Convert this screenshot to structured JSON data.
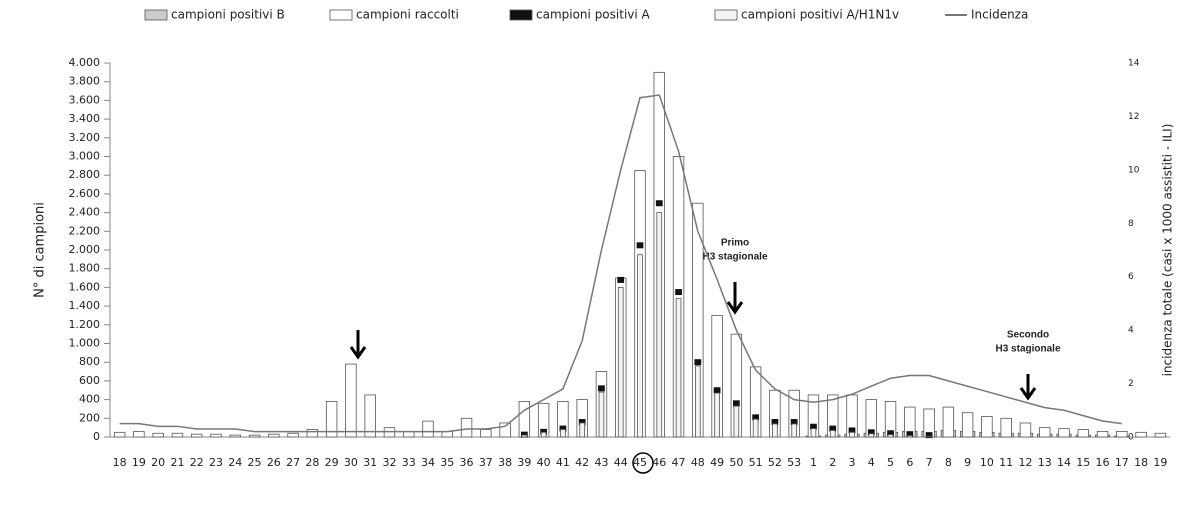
{
  "chart_data": {
    "type": "bar",
    "legend": "top",
    "y_label": "N° di campioni",
    "y2_label": "incidenza totale (casi x 1000 assistiti - ILI)",
    "annotations": [
      {
        "text": [
          "Primo",
          "H3 stagionale"
        ]
      },
      {
        "text": [
          "Secondo",
          "H3 stagionale"
        ]
      }
    ],
    "categories": [
      18,
      19,
      20,
      21,
      22,
      23,
      24,
      25,
      26,
      27,
      28,
      29,
      30,
      31,
      32,
      33,
      34,
      35,
      36,
      37,
      38,
      39,
      40,
      41,
      42,
      43,
      44,
      45,
      46,
      47,
      48,
      49,
      50,
      51,
      52,
      53,
      1,
      2,
      3,
      4,
      5,
      6,
      7,
      8,
      9,
      10,
      11,
      12,
      13,
      14,
      15,
      16,
      17,
      18,
      19
    ],
    "series": [
      {
        "name": "campioni positivi B",
        "type": "bar",
        "color": "#cccccc",
        "values": [
          0,
          0,
          0,
          0,
          0,
          0,
          0,
          0,
          0,
          0,
          0,
          0,
          0,
          0,
          0,
          0,
          0,
          0,
          0,
          0,
          0,
          0,
          0,
          0,
          0,
          0,
          0,
          0,
          0,
          0,
          0,
          0,
          0,
          0,
          0,
          0,
          10,
          20,
          30,
          40,
          50,
          60,
          60,
          70,
          60,
          50,
          40,
          40,
          30,
          30,
          20,
          20,
          10,
          0,
          0
        ]
      },
      {
        "name": "campioni raccolti",
        "type": "bar",
        "color": "#ffffff",
        "values": [
          50,
          60,
          40,
          40,
          30,
          30,
          20,
          20,
          30,
          40,
          80,
          380,
          780,
          450,
          100,
          60,
          170,
          60,
          200,
          80,
          150,
          380,
          360,
          380,
          400,
          700,
          1700,
          2850,
          3900,
          3000,
          2500,
          1300,
          1100,
          750,
          500,
          500,
          450,
          450,
          450,
          400,
          380,
          320,
          300,
          320,
          260,
          220,
          200,
          150,
          100,
          90,
          80,
          60,
          60,
          50,
          40
        ]
      },
      {
        "name": "campioni positivi A",
        "type": "bar",
        "color": "#111111",
        "values": [
          0,
          0,
          0,
          0,
          0,
          0,
          0,
          0,
          0,
          0,
          0,
          0,
          0,
          0,
          0,
          0,
          0,
          0,
          0,
          0,
          0,
          25,
          55,
          90,
          160,
          520,
          1680,
          2050,
          2500,
          1550,
          800,
          500,
          360,
          210,
          160,
          160,
          110,
          90,
          70,
          50,
          40,
          30,
          20,
          0,
          0,
          0,
          0,
          0,
          0,
          0,
          0,
          0,
          0,
          0,
          0
        ]
      },
      {
        "name": "campioni positivi A/H1N1v",
        "type": "bar",
        "color": "#f4f4f4",
        "values": [
          0,
          0,
          0,
          0,
          0,
          0,
          0,
          0,
          0,
          0,
          0,
          0,
          0,
          0,
          0,
          0,
          0,
          0,
          0,
          0,
          0,
          20,
          50,
          80,
          150,
          480,
          1600,
          1950,
          2400,
          1480,
          760,
          470,
          330,
          190,
          140,
          140,
          90,
          70,
          50,
          35,
          25,
          15,
          8,
          0,
          0,
          0,
          0,
          0,
          0,
          0,
          0,
          0,
          0,
          0,
          0
        ]
      },
      {
        "name": "Incidenza",
        "type": "line",
        "axis": "y2",
        "color": "#777777",
        "values": [
          0.5,
          0.5,
          0.4,
          0.4,
          0.3,
          0.3,
          0.3,
          0.2,
          0.2,
          0.2,
          0.2,
          0.2,
          0.2,
          0.2,
          0.2,
          0.2,
          0.2,
          0.2,
          0.3,
          0.3,
          0.4,
          1.0,
          1.4,
          1.8,
          3.6,
          7.0,
          10.0,
          12.7,
          12.8,
          10.7,
          7.7,
          5.9,
          4.0,
          2.5,
          1.8,
          1.4,
          1.3,
          1.4,
          1.6,
          1.9,
          2.2,
          2.3,
          2.3,
          2.1,
          1.9,
          1.7,
          1.5,
          1.3,
          1.1,
          1.0,
          0.8,
          0.6,
          0.5,
          null,
          null
        ]
      }
    ],
    "ylim": [
      0,
      4000
    ],
    "yticks": [
      0,
      200,
      400,
      600,
      800,
      {
        "value": 1000,
        "label": "1.000"
      },
      {
        "value": 1200,
        "label": "1.200"
      },
      {
        "value": 1400,
        "label": "1.400"
      },
      {
        "value": 1600,
        "label": "1.600"
      },
      {
        "value": 1800,
        "label": "1.800"
      },
      {
        "value": 2000,
        "label": "2.000"
      },
      {
        "value": 2200,
        "label": "2.200"
      },
      {
        "value": 2400,
        "label": "2.400"
      },
      {
        "value": 2600,
        "label": "2.600"
      },
      {
        "value": 2800,
        "label": "2.800"
      },
      {
        "value": 3000,
        "label": "3.000"
      },
      {
        "value": 3200,
        "label": "3.200"
      },
      {
        "value": 3400,
        "label": "3.400"
      },
      {
        "value": 3600,
        "label": "3.600"
      },
      {
        "value": 3800,
        "label": "3.800"
      },
      {
        "value": 4000,
        "label": "4.000"
      }
    ],
    "y2lim": [
      0,
      14
    ],
    "y2ticks": [
      0,
      2,
      4,
      6,
      8,
      10,
      12,
      14
    ]
  }
}
